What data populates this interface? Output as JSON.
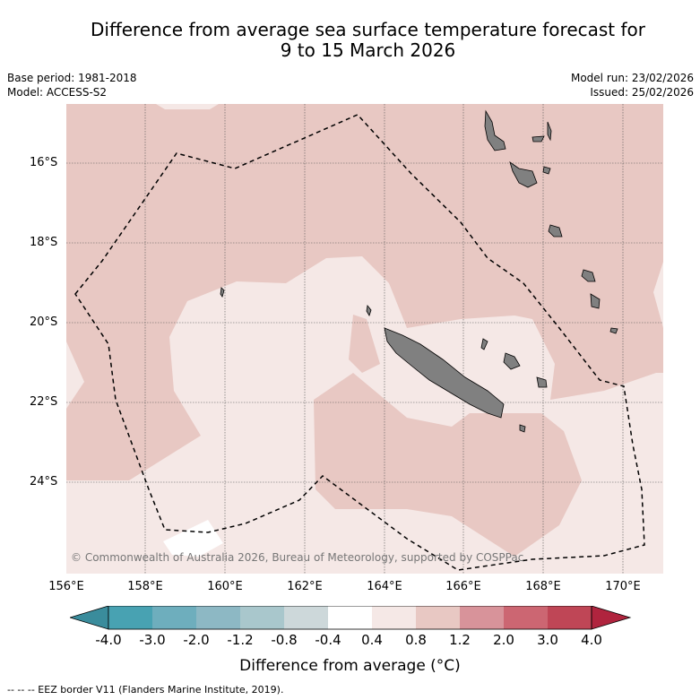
{
  "title": {
    "line1": "Difference from average sea surface temperature forecast for",
    "line2": "9 to 15 March 2026"
  },
  "meta": {
    "base_period": "Base period: 1981-2018",
    "model": "Model: ACCESS-S2",
    "model_run": "Model run: 23/02/2026",
    "issued": "Issued: 25/02/2026"
  },
  "map": {
    "lat_labels": [
      "16°S",
      "18°S",
      "20°S",
      "22°S",
      "24°S"
    ],
    "lon_labels": [
      "156°E",
      "158°E",
      "160°E",
      "162°E",
      "164°E",
      "166°E",
      "168°E",
      "170°E"
    ],
    "copyright": "© Commonwealth of Australia 2026, Bureau of Meteorology, supported by COSPPac",
    "colors": {
      "anomaly_0_4_to_0_8": "#f5e8e6",
      "anomaly_0_8_to_1_2": "#e8c8c3",
      "neutral": "#ffffff",
      "land": "#808080",
      "grid": "#555555"
    }
  },
  "colorbar": {
    "ticks": [
      "-4.0",
      "-3.0",
      "-2.0",
      "-1.2",
      "-0.8",
      "-0.4",
      "0.4",
      "0.8",
      "1.2",
      "2.0",
      "3.0",
      "4.0"
    ],
    "colors": [
      "#3a8c9c",
      "#48a2b2",
      "#6eaebd",
      "#8db8c4",
      "#a9c7cc",
      "#cdd8da",
      "#ffffff",
      "#f5e8e6",
      "#e8c8c3",
      "#d8939a",
      "#cc6672",
      "#bf4656",
      "#b0243e"
    ],
    "label": "Difference from average (°C)"
  },
  "footnote": "--  --  -- EEZ border V11 (Flanders Marine Institute, 2019)."
}
